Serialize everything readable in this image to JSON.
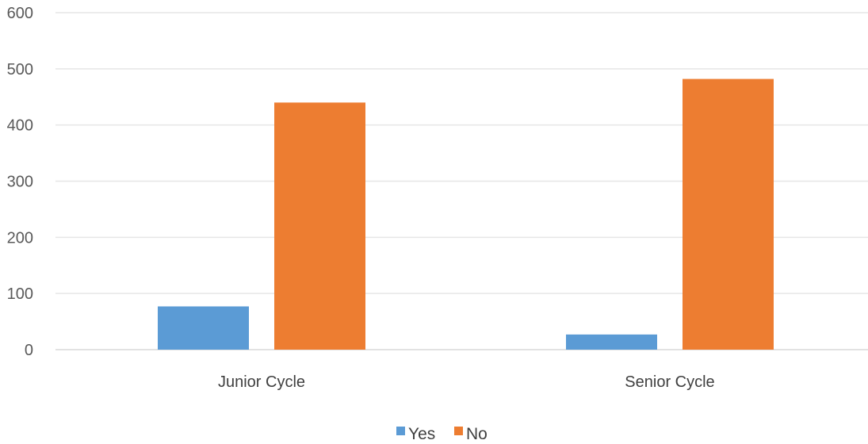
{
  "chart_data": {
    "type": "bar",
    "title": "",
    "xlabel": "",
    "ylabel": "",
    "categories": [
      "Junior Cycle",
      "Senior Cycle"
    ],
    "series": [
      {
        "name": "Yes",
        "color": "#5b9bd5",
        "values": [
          77,
          27
        ]
      },
      {
        "name": "No",
        "color": "#ed7d31",
        "values": [
          440,
          482
        ]
      }
    ],
    "ylim": [
      0,
      600
    ],
    "yticks": [
      0,
      100,
      200,
      300,
      400,
      500,
      600
    ],
    "grid": true,
    "legend_position": "bottom"
  }
}
